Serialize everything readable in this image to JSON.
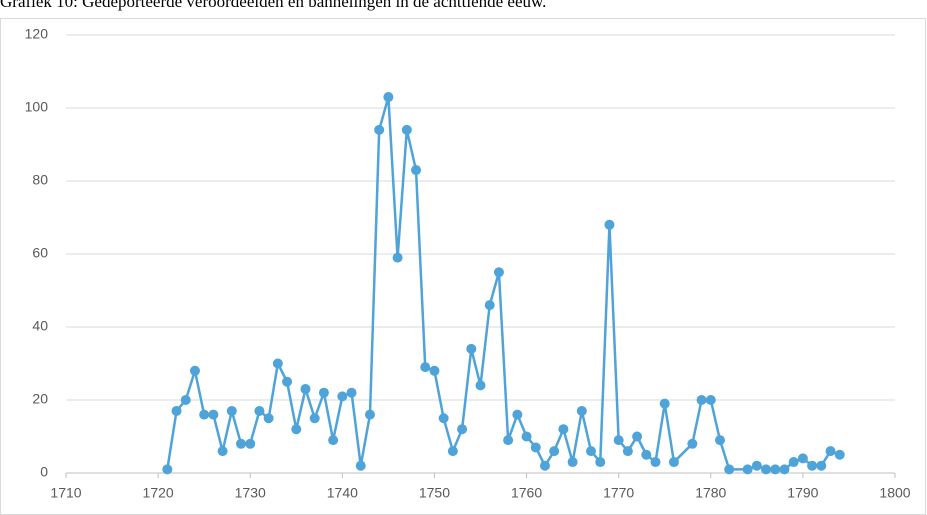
{
  "chart_data": {
    "type": "line",
    "title": "Grafiek 10: Gedeporteerde veroordeelden en bannelingen in de achttiende eeuw.",
    "x": [
      1721,
      1722,
      1723,
      1724,
      1725,
      1726,
      1727,
      1728,
      1729,
      1730,
      1731,
      1732,
      1733,
      1734,
      1735,
      1736,
      1737,
      1738,
      1739,
      1740,
      1741,
      1742,
      1743,
      1744,
      1745,
      1746,
      1747,
      1748,
      1749,
      1750,
      1751,
      1752,
      1753,
      1754,
      1755,
      1756,
      1757,
      1758,
      1759,
      1760,
      1761,
      1762,
      1763,
      1764,
      1765,
      1766,
      1767,
      1768,
      1769,
      1770,
      1771,
      1772,
      1773,
      1774,
      1775,
      1776,
      1778,
      1779,
      1780,
      1781,
      1782,
      1784,
      1785,
      1786,
      1787,
      1788,
      1789,
      1790,
      1791,
      1792,
      1793,
      1794
    ],
    "series": [
      {
        "color": "#4ea3d8",
        "values": [
          1,
          17,
          20,
          28,
          16,
          16,
          6,
          17,
          8,
          8,
          17,
          15,
          30,
          25,
          12,
          23,
          15,
          22,
          9,
          21,
          22,
          2,
          16,
          94,
          103,
          59,
          94,
          83,
          29,
          28,
          15,
          6,
          12,
          34,
          24,
          46,
          55,
          9,
          16,
          10,
          7,
          2,
          6,
          12,
          3,
          17,
          6,
          3,
          68,
          9,
          6,
          10,
          5,
          3,
          19,
          3,
          8,
          20,
          20,
          9,
          1,
          1,
          2,
          1,
          1,
          1,
          3,
          4,
          2,
          2,
          6,
          5
        ]
      }
    ],
    "xlim": [
      1710,
      1800
    ],
    "xticks": [
      1710,
      1720,
      1730,
      1740,
      1750,
      1760,
      1770,
      1780,
      1790,
      1800
    ],
    "ylim": [
      0,
      120
    ],
    "yticks": [
      0,
      20,
      40,
      60,
      80,
      100,
      120
    ],
    "grid": true
  }
}
